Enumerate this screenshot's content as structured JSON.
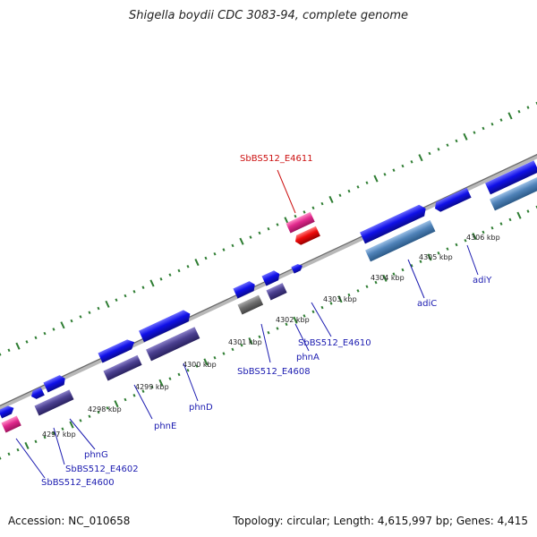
{
  "title": "Shigella boydii CDC 3083-94, complete genome",
  "accession": "Accession: NC_010658",
  "topology": "Topology: circular; Length: 4,615,997 bp; Genes: 4,415",
  "colors": {
    "backbone": "#8c8c8c",
    "tick": "#2e7d32",
    "gene_blue": "#1010e8",
    "gene_slate": "#4a3f8f",
    "gene_steel": "#4f82b8",
    "gene_gray": "#6e6e6e",
    "gene_pink": "#e0288c",
    "gene_red": "#ee0a0a",
    "label_blue": "#1b1bb0",
    "label_red": "#cc1111",
    "kbp_text": "#222222"
  },
  "kbp_labels": [
    "4297 kbp",
    "4298 kbp",
    "4299 kbp",
    "4300 kbp",
    "4301 kbp",
    "4302 kbp",
    "4303 kbp",
    "4304 kbp",
    "4305 kbp",
    "4306 kbp"
  ],
  "gene_labels": [
    {
      "text": "SbBS512_E4611",
      "color": "red"
    },
    {
      "text": "adiY",
      "color": "blue"
    },
    {
      "text": "adiC",
      "color": "blue"
    },
    {
      "text": "SbBS512_E4610",
      "color": "blue"
    },
    {
      "text": "phnA",
      "color": "blue"
    },
    {
      "text": "SbBS512_E4608",
      "color": "blue"
    },
    {
      "text": "phnD",
      "color": "blue"
    },
    {
      "text": "phnE",
      "color": "blue"
    },
    {
      "text": "phnG",
      "color": "blue"
    },
    {
      "text": "SbBS512_E4602",
      "color": "blue"
    },
    {
      "text": "SbBS512_E4600",
      "color": "blue"
    }
  ]
}
